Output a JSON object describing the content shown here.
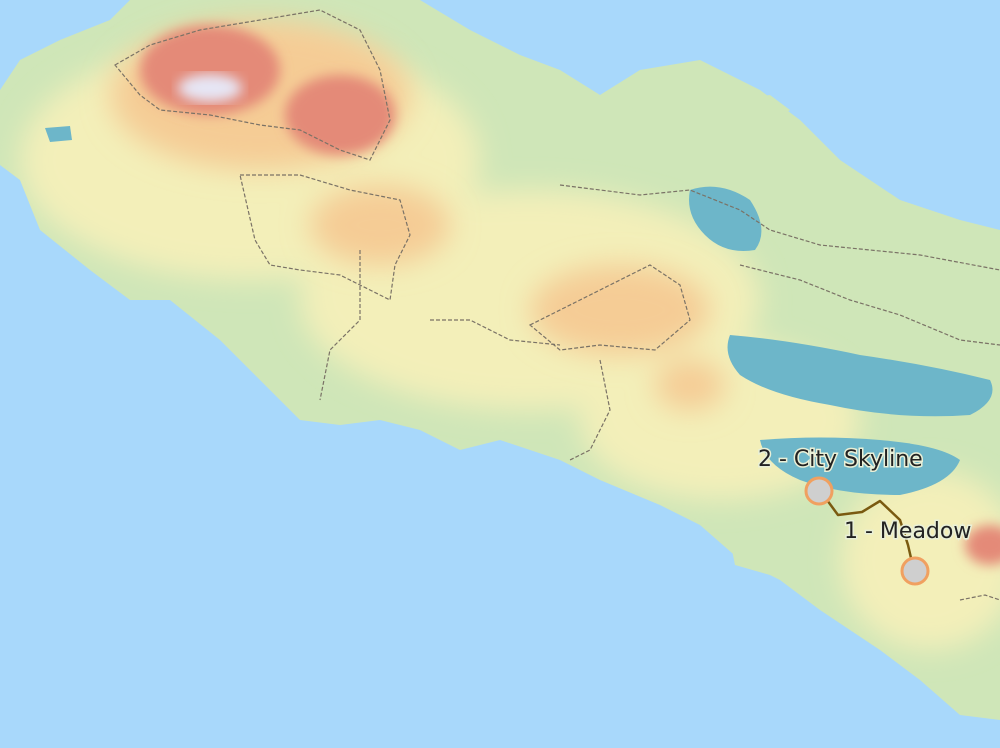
{
  "map": {
    "colors": {
      "sea": "#a8d8fb",
      "lowland": "#cfe6b8",
      "plain": "#f3efb9",
      "hill": "#f5cc95",
      "mountain": "#e48a78",
      "snow": "#e6e6f5",
      "lake": "#6db6c9",
      "route": "#7a5a10",
      "marker_fill": "#cfcfcf",
      "marker_stroke": "#f0a060"
    },
    "markers": [
      {
        "label": "1 - Meadow"
      },
      {
        "label": "2 - City Skyline"
      }
    ]
  }
}
